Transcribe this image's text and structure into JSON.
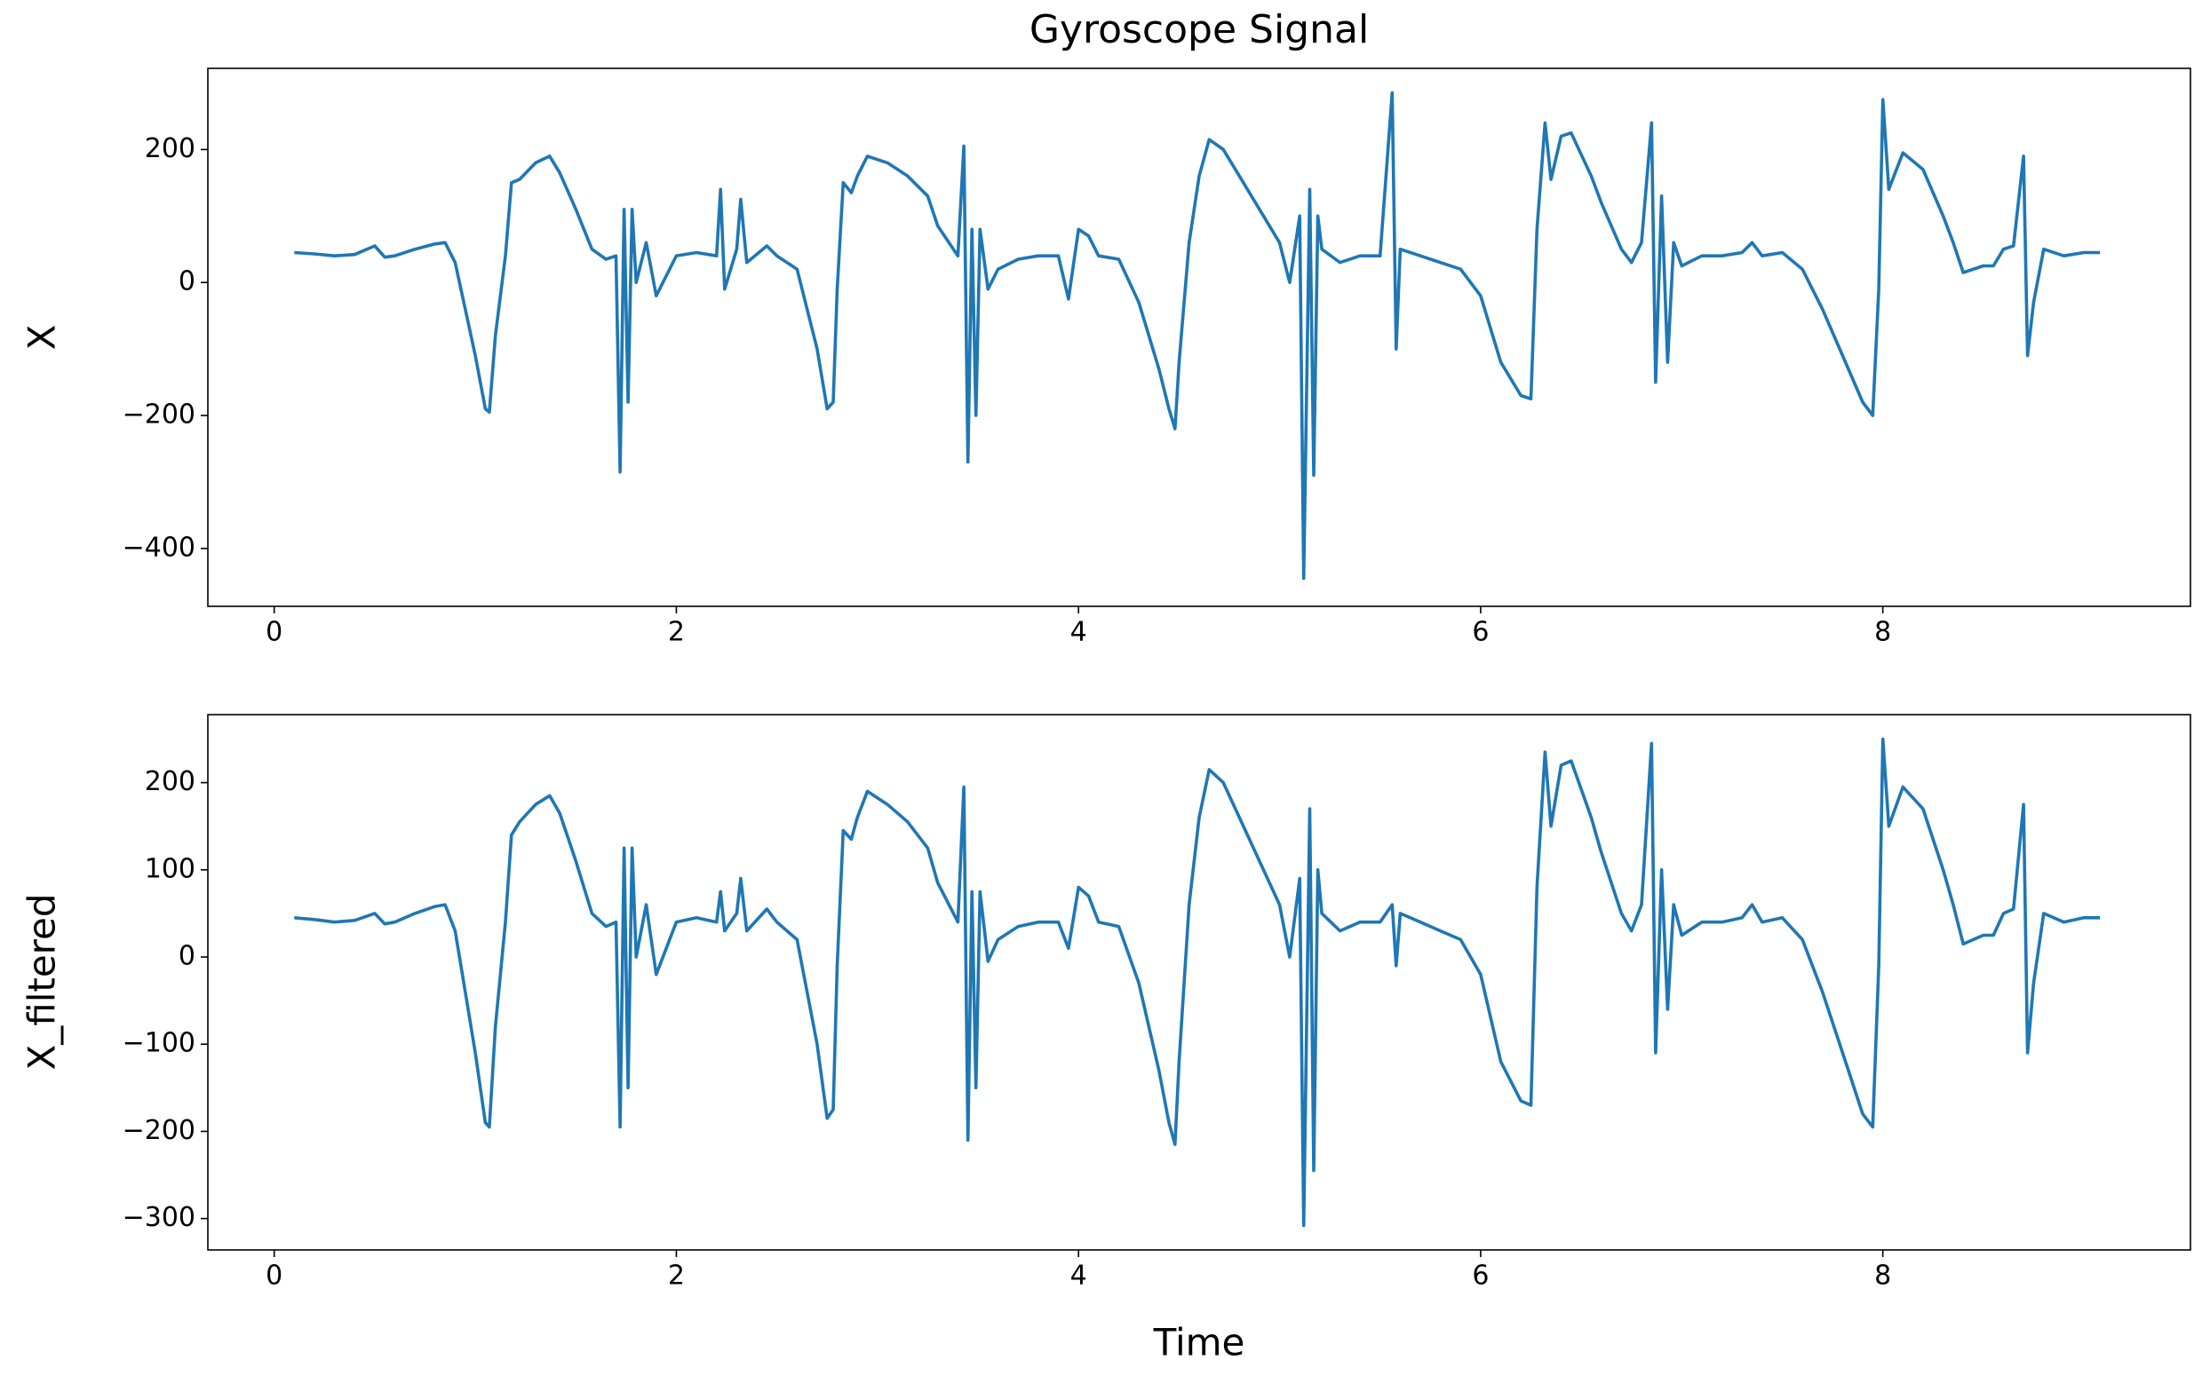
{
  "chart_data": [
    {
      "type": "line",
      "title": "Gyroscope Signal",
      "ylabel": "X",
      "color": "#1f77b4",
      "x": [
        0.1,
        0.2,
        0.3,
        0.4,
        0.5,
        0.55,
        0.6,
        0.7,
        0.8,
        0.85,
        0.9,
        0.95,
        1.0,
        1.05,
        1.07,
        1.1,
        1.15,
        1.18,
        1.22,
        1.3,
        1.37,
        1.42,
        1.5,
        1.58,
        1.65,
        1.7,
        1.72,
        1.74,
        1.76,
        1.78,
        1.8,
        1.85,
        1.9,
        1.95,
        2.0,
        2.1,
        2.2,
        2.22,
        2.24,
        2.3,
        2.32,
        2.35,
        2.45,
        2.5,
        2.6,
        2.7,
        2.75,
        2.78,
        2.8,
        2.83,
        2.87,
        2.9,
        2.95,
        3.05,
        3.15,
        3.25,
        3.3,
        3.4,
        3.43,
        3.45,
        3.47,
        3.49,
        3.51,
        3.55,
        3.6,
        3.7,
        3.8,
        3.9,
        3.95,
        4.0,
        4.05,
        4.1,
        4.2,
        4.3,
        4.4,
        4.45,
        4.48,
        4.5,
        4.55,
        4.6,
        4.65,
        4.72,
        4.8,
        4.9,
        5.0,
        5.05,
        5.1,
        5.12,
        5.15,
        5.17,
        5.19,
        5.21,
        5.3,
        5.4,
        5.5,
        5.56,
        5.58,
        5.6,
        5.7,
        5.8,
        5.9,
        6.0,
        6.1,
        6.2,
        6.25,
        6.28,
        6.32,
        6.35,
        6.4,
        6.45,
        6.55,
        6.6,
        6.7,
        6.75,
        6.8,
        6.85,
        6.87,
        6.9,
        6.93,
        6.96,
        7.0,
        7.1,
        7.2,
        7.3,
        7.35,
        7.4,
        7.5,
        7.6,
        7.7,
        7.8,
        7.9,
        7.95,
        7.98,
        8.0,
        8.03,
        8.1,
        8.2,
        8.3,
        8.35,
        8.4,
        8.5,
        8.55,
        8.6,
        8.65,
        8.7,
        8.72,
        8.75,
        8.8,
        8.9,
        9.0,
        9.08
      ],
      "values": [
        45,
        43,
        40,
        42,
        55,
        38,
        40,
        50,
        58,
        60,
        30,
        -40,
        -110,
        -190,
        -195,
        -80,
        40,
        150,
        155,
        180,
        190,
        165,
        110,
        50,
        35,
        40,
        -285,
        110,
        -180,
        110,
        0,
        60,
        -20,
        10,
        40,
        45,
        40,
        140,
        -10,
        50,
        125,
        30,
        55,
        40,
        20,
        -100,
        -190,
        -180,
        -10,
        150,
        135,
        160,
        190,
        180,
        160,
        130,
        85,
        40,
        205,
        -270,
        80,
        -200,
        80,
        -10,
        20,
        35,
        40,
        40,
        -25,
        80,
        70,
        40,
        35,
        -30,
        -130,
        -190,
        -220,
        -120,
        60,
        160,
        215,
        200,
        160,
        110,
        60,
        0,
        100,
        -445,
        140,
        -290,
        100,
        50,
        30,
        40,
        40,
        285,
        -100,
        50,
        40,
        30,
        20,
        -20,
        -120,
        -170,
        -175,
        80,
        240,
        155,
        220,
        225,
        160,
        120,
        50,
        30,
        60,
        240,
        -150,
        130,
        -120,
        60,
        25,
        40,
        40,
        45,
        60,
        40,
        45,
        20,
        -40,
        -110,
        -180,
        -200,
        -10,
        275,
        140,
        195,
        170,
        100,
        60,
        15,
        25,
        25,
        50,
        55,
        190,
        -110,
        -30,
        50,
        40,
        45,
        45
      ],
      "xlim": [
        -0.33,
        9.53
      ],
      "xticks": [
        0,
        2,
        4,
        6,
        8
      ],
      "ylim": [
        -487,
        322
      ],
      "yticks": [
        {
          "value": -400,
          "label": "−400"
        },
        {
          "value": -200,
          "label": "−200"
        },
        0,
        200
      ]
    },
    {
      "type": "line",
      "xlabel": "Time",
      "ylabel": "X_filtered",
      "color": "#1f77b4",
      "x": [
        0.1,
        0.2,
        0.3,
        0.4,
        0.5,
        0.55,
        0.6,
        0.7,
        0.8,
        0.85,
        0.9,
        0.95,
        1.0,
        1.05,
        1.07,
        1.1,
        1.15,
        1.18,
        1.22,
        1.3,
        1.37,
        1.42,
        1.5,
        1.58,
        1.65,
        1.7,
        1.72,
        1.74,
        1.76,
        1.78,
        1.8,
        1.85,
        1.9,
        1.95,
        2.0,
        2.1,
        2.2,
        2.22,
        2.24,
        2.3,
        2.32,
        2.35,
        2.45,
        2.5,
        2.6,
        2.7,
        2.75,
        2.78,
        2.8,
        2.83,
        2.87,
        2.9,
        2.95,
        3.05,
        3.15,
        3.25,
        3.3,
        3.4,
        3.43,
        3.45,
        3.47,
        3.49,
        3.51,
        3.55,
        3.6,
        3.7,
        3.8,
        3.9,
        3.95,
        4.0,
        4.05,
        4.1,
        4.2,
        4.3,
        4.4,
        4.45,
        4.48,
        4.5,
        4.55,
        4.6,
        4.65,
        4.72,
        4.8,
        4.9,
        5.0,
        5.05,
        5.1,
        5.12,
        5.15,
        5.17,
        5.19,
        5.21,
        5.3,
        5.4,
        5.5,
        5.56,
        5.58,
        5.6,
        5.7,
        5.8,
        5.9,
        6.0,
        6.1,
        6.2,
        6.25,
        6.28,
        6.32,
        6.35,
        6.4,
        6.45,
        6.55,
        6.6,
        6.7,
        6.75,
        6.8,
        6.85,
        6.87,
        6.9,
        6.93,
        6.96,
        7.0,
        7.1,
        7.2,
        7.3,
        7.35,
        7.4,
        7.5,
        7.6,
        7.7,
        7.8,
        7.9,
        7.95,
        7.98,
        8.0,
        8.03,
        8.1,
        8.2,
        8.3,
        8.35,
        8.4,
        8.5,
        8.55,
        8.6,
        8.65,
        8.7,
        8.72,
        8.75,
        8.8,
        8.9,
        9.0,
        9.08
      ],
      "values": [
        45,
        43,
        40,
        42,
        50,
        38,
        40,
        50,
        58,
        60,
        30,
        -40,
        -110,
        -190,
        -195,
        -80,
        40,
        140,
        155,
        175,
        185,
        165,
        110,
        50,
        35,
        40,
        -195,
        125,
        -150,
        125,
        0,
        60,
        -20,
        10,
        40,
        45,
        40,
        75,
        30,
        50,
        90,
        30,
        55,
        40,
        20,
        -100,
        -185,
        -175,
        -10,
        145,
        135,
        160,
        190,
        175,
        155,
        125,
        85,
        40,
        195,
        -210,
        75,
        -150,
        75,
        -5,
        20,
        35,
        40,
        40,
        10,
        80,
        70,
        40,
        35,
        -30,
        -130,
        -190,
        -215,
        -120,
        60,
        160,
        215,
        200,
        160,
        110,
        60,
        0,
        90,
        -308,
        170,
        -245,
        100,
        50,
        30,
        40,
        40,
        60,
        -10,
        50,
        40,
        30,
        20,
        -20,
        -120,
        -165,
        -170,
        80,
        235,
        150,
        220,
        225,
        160,
        120,
        50,
        30,
        60,
        245,
        -110,
        100,
        -60,
        60,
        25,
        40,
        40,
        45,
        60,
        40,
        45,
        20,
        -40,
        -110,
        -180,
        -195,
        -10,
        250,
        150,
        195,
        170,
        100,
        60,
        15,
        25,
        25,
        50,
        55,
        175,
        -110,
        -30,
        50,
        40,
        45,
        45
      ],
      "xlim": [
        -0.33,
        9.53
      ],
      "xticks": [
        0,
        2,
        4,
        6,
        8
      ],
      "ylim": [
        -336,
        278
      ],
      "yticks": [
        {
          "value": -300,
          "label": "−300"
        },
        {
          "value": -200,
          "label": "−200"
        },
        {
          "value": -100,
          "label": "−100"
        },
        0,
        100,
        200
      ]
    }
  ]
}
